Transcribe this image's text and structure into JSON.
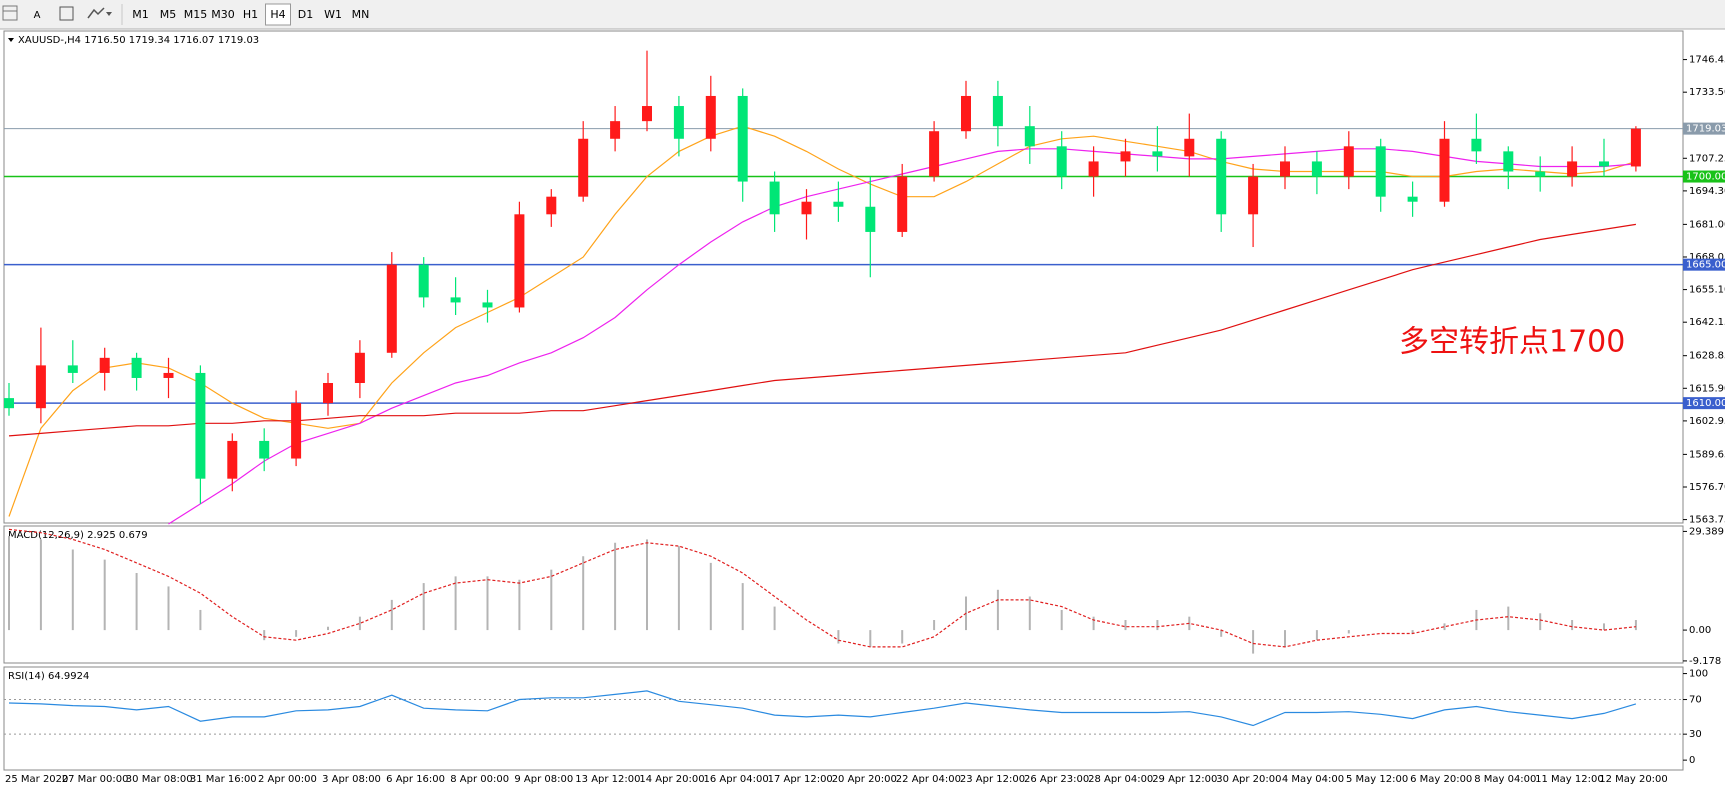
{
  "toolbar": {
    "tools": [
      "A"
    ],
    "periods": [
      "M1",
      "M5",
      "M15",
      "M30",
      "H1",
      "H4",
      "D1",
      "W1",
      "MN"
    ],
    "active_period": "H4"
  },
  "chart_data": [
    {
      "type": "candlestick",
      "title": "XAUUSD-,H4  1716.50 1719.34 1716.07 1719.03",
      "open": [
        1612,
        1608,
        1625,
        1622,
        1628,
        1620,
        1622,
        1580,
        1595,
        1588,
        1610,
        1618,
        1630,
        1665,
        1652,
        1650,
        1648,
        1685,
        1692,
        1715,
        1722,
        1728,
        1715,
        1732,
        1698,
        1685,
        1690,
        1688,
        1678,
        1700,
        1718,
        1732,
        1720,
        1712,
        1700,
        1706,
        1710,
        1708,
        1715,
        1685,
        1700,
        1706,
        1700,
        1712,
        1692,
        1690,
        1715,
        1710,
        1702,
        1700,
        1706,
        1704
      ],
      "high": [
        1618,
        1640,
        1635,
        1632,
        1630,
        1628,
        1625,
        1598,
        1600,
        1615,
        1622,
        1635,
        1670,
        1668,
        1660,
        1655,
        1690,
        1695,
        1722,
        1728,
        1750,
        1732,
        1740,
        1735,
        1702,
        1695,
        1698,
        1700,
        1705,
        1722,
        1738,
        1738,
        1728,
        1718,
        1712,
        1715,
        1720,
        1725,
        1718,
        1705,
        1712,
        1710,
        1718,
        1715,
        1698,
        1722,
        1725,
        1712,
        1708,
        1712,
        1715,
        1720
      ],
      "low": [
        1605,
        1602,
        1618,
        1615,
        1615,
        1612,
        1570,
        1575,
        1583,
        1585,
        1605,
        1612,
        1628,
        1648,
        1645,
        1642,
        1646,
        1680,
        1690,
        1710,
        1718,
        1708,
        1710,
        1690,
        1678,
        1675,
        1682,
        1660,
        1676,
        1698,
        1715,
        1712,
        1705,
        1695,
        1692,
        1700,
        1702,
        1700,
        1678,
        1672,
        1695,
        1693,
        1695,
        1686,
        1684,
        1688,
        1705,
        1695,
        1694,
        1696,
        1700,
        1702
      ],
      "close": [
        1608,
        1625,
        1622,
        1628,
        1620,
        1622,
        1580,
        1595,
        1588,
        1610,
        1618,
        1630,
        1665,
        1652,
        1650,
        1648,
        1685,
        1692,
        1715,
        1722,
        1728,
        1715,
        1732,
        1698,
        1685,
        1690,
        1688,
        1678,
        1700,
        1718,
        1732,
        1720,
        1712,
        1700,
        1706,
        1710,
        1708,
        1715,
        1685,
        1700,
        1706,
        1700,
        1712,
        1692,
        1690,
        1715,
        1710,
        1702,
        1700,
        1706,
        1704,
        1719
      ],
      "up_color": "#ff1a1a",
      "down_color": "#00e676",
      "lines": [
        {
          "color": "#ffa31a",
          "values": [
            1565,
            1600,
            1615,
            1624,
            1626,
            1624,
            1618,
            1610,
            1604,
            1602,
            1600,
            1602,
            1618,
            1630,
            1640,
            1646,
            1652,
            1660,
            1668,
            1685,
            1700,
            1710,
            1716,
            1720,
            1716,
            1710,
            1703,
            1697,
            1692,
            1692,
            1698,
            1705,
            1712,
            1715,
            1716,
            1714,
            1712,
            1710,
            1706,
            1703,
            1702,
            1702,
            1702,
            1702,
            1700,
            1700,
            1702,
            1703,
            1702,
            1701,
            1702,
            1706
          ]
        },
        {
          "color": "#ee22ee",
          "values": [
            null,
            null,
            null,
            null,
            null,
            1562,
            1570,
            1578,
            1587,
            1594,
            1598,
            1602,
            1608,
            1613,
            1618,
            1621,
            1626,
            1630,
            1636,
            1644,
            1655,
            1665,
            1674,
            1682,
            1688,
            1692,
            1695,
            1698,
            1701,
            1704,
            1707,
            1710,
            1711,
            1711,
            1710,
            1709,
            1708,
            1707,
            1707,
            1708,
            1709,
            1710,
            1711,
            1711,
            1710,
            1708,
            1706,
            1705,
            1704,
            1704,
            1704,
            1705
          ]
        },
        {
          "color": "#e01010",
          "values": [
            1597,
            1598,
            1599,
            1600,
            1601,
            1601,
            1602,
            1602,
            1603,
            1603,
            1604,
            1605,
            1605,
            1605,
            1606,
            1606,
            1606,
            1607,
            1607,
            1609,
            1611,
            1613,
            1615,
            1617,
            1619,
            1620,
            1621,
            1622,
            1623,
            1624,
            1625,
            1626,
            1627,
            1628,
            1629,
            1630,
            1633,
            1636,
            1639,
            1643,
            1647,
            1651,
            1655,
            1659,
            1663,
            1666,
            1669,
            1672,
            1675,
            1677,
            1679,
            1681
          ]
        }
      ],
      "levels": [
        {
          "value": 1719.03,
          "label": "1719.03",
          "color": "#8a9bab"
        },
        {
          "value": 1700,
          "label": "1700.00",
          "color": "#19c219"
        },
        {
          "value": 1665,
          "label": "1665.00",
          "color": "#3a5fcd"
        },
        {
          "value": 1610,
          "label": "1610.00",
          "color": "#3a5fcd"
        }
      ],
      "annotation": "多空转折点1700",
      "annotation_color": "#ee1111",
      "ylim": [
        1562.4,
        1757.8
      ],
      "yticks": [
        1746.45,
        {
          "value": 1733.5,
          "label": "1733.50"
        },
        1707.25,
        {
          "value": 1694.3,
          "label": "1694.30"
        },
        {
          "value": 1681,
          "label": "1681.00"
        },
        1668.05,
        {
          "value": 1655.1,
          "label": "1655.10"
        },
        1642.15,
        1628.85,
        {
          "value": 1615.9,
          "label": "1615.90"
        },
        1602.95,
        1589.65,
        {
          "value": 1576.7,
          "label": "1576.70"
        },
        1563.75
      ],
      "date_labels": [
        "25 Mar 2020",
        "27 Mar 00:00",
        "30 Mar 08:00",
        "31 Mar 16:00",
        "2 Apr 00:00",
        "3 Apr 08:00",
        "6 Apr 16:00",
        "8 Apr 00:00",
        "9 Apr 08:00",
        "13 Apr 12:00",
        "14 Apr 20:00",
        "16 Apr 04:00",
        "17 Apr 12:00",
        "20 Apr 20:00",
        "22 Apr 04:00",
        "23 Apr 12:00",
        "26 Apr 23:00",
        "28 Apr 04:00",
        "29 Apr 12:00",
        "30 Apr 20:00",
        "4 May 04:00",
        "5 May 12:00",
        "6 May 20:00",
        "8 May 04:00",
        "11 May 12:00",
        "12 May 20:00"
      ]
    },
    {
      "type": "macd",
      "title": "MACD(12,26,9) 2.925 0.679",
      "histogram": [
        28,
        27,
        24,
        21,
        17,
        13,
        6,
        0,
        -3,
        -2,
        1,
        4,
        9,
        14,
        16,
        16,
        15,
        18,
        22,
        26,
        27,
        25,
        20,
        14,
        7,
        0,
        -4,
        -5,
        -4,
        3,
        10,
        12,
        10,
        6,
        4,
        3,
        3,
        4,
        -2,
        -7,
        -5,
        -3,
        -1,
        0,
        -1,
        2,
        6,
        7,
        5,
        3,
        2,
        3
      ],
      "signal": [
        30,
        29,
        27,
        24,
        20,
        16,
        11,
        4,
        -2,
        -3,
        -1,
        2,
        6,
        11,
        14,
        15,
        14,
        16,
        20,
        24,
        26,
        25,
        22,
        17,
        10,
        3,
        -3,
        -5,
        -5,
        -2,
        5,
        9,
        9,
        7,
        3,
        1,
        1,
        2,
        0,
        -4,
        -5,
        -3,
        -2,
        -1,
        -1,
        1,
        3,
        4,
        3,
        1,
        0,
        1
      ],
      "hist_color": "#b4b4b4",
      "signal_color": "#e02020",
      "ylim": [
        -9.8,
        31.0
      ],
      "yticks": [
        29.389,
        {
          "value": 0,
          "label": "0.00"
        },
        -9.178
      ]
    },
    {
      "type": "line",
      "title": "RSI(14) 64.9924",
      "values": [
        66,
        65,
        63,
        62,
        58,
        62,
        45,
        50,
        50,
        57,
        58,
        62,
        75,
        60,
        58,
        57,
        70,
        72,
        72,
        76,
        80,
        68,
        64,
        60,
        52,
        50,
        52,
        50,
        55,
        60,
        66,
        62,
        58,
        55,
        55,
        55,
        55,
        56,
        50,
        40,
        55,
        55,
        56,
        53,
        48,
        58,
        62,
        56,
        52,
        48,
        54,
        65
      ],
      "color": "#2a8ae0",
      "levels": [
        70,
        30
      ],
      "ylim": [
        -11.4,
        107.6
      ],
      "yticks": [
        100,
        70,
        30,
        0
      ]
    }
  ]
}
